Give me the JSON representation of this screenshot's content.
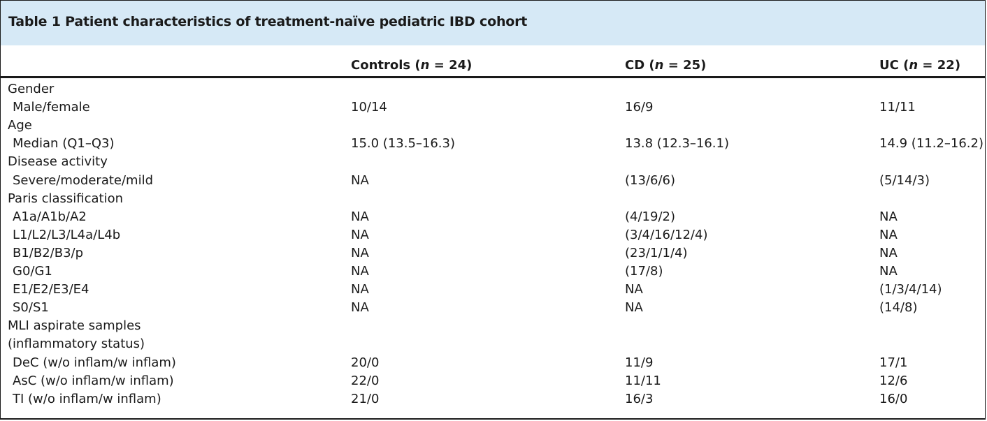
{
  "table": {
    "title": "Table 1 Patient characteristics of treatment-naïve pediatric IBD cohort",
    "columns": [
      {
        "label": "Controls (",
        "n_sym": "n",
        "rest": " = 24)"
      },
      {
        "label": "CD (",
        "n_sym": "n",
        "rest": " = 25)"
      },
      {
        "label": "UC (",
        "n_sym": "n",
        "rest": " = 22)"
      }
    ],
    "rows": [
      {
        "label": "Gender",
        "sub": false,
        "values": [
          "",
          "",
          ""
        ]
      },
      {
        "label": "Male/female",
        "sub": true,
        "values": [
          "10/14",
          "16/9",
          "11/11"
        ]
      },
      {
        "label": "Age",
        "sub": false,
        "values": [
          "",
          "",
          ""
        ]
      },
      {
        "label": "Median (Q1–Q3)",
        "sub": true,
        "values": [
          "15.0 (13.5–16.3)",
          "13.8 (12.3–16.1)",
          "14.9 (11.2–16.2)"
        ]
      },
      {
        "label": "Disease activity",
        "sub": false,
        "values": [
          "",
          "",
          ""
        ]
      },
      {
        "label": "Severe/moderate/mild",
        "sub": true,
        "values": [
          "NA",
          "(13/6/6)",
          "(5/14/3)"
        ]
      },
      {
        "label": "Paris classification",
        "sub": false,
        "values": [
          "",
          "",
          ""
        ]
      },
      {
        "label": "A1a/A1b/A2",
        "sub": true,
        "values": [
          "NA",
          "(4/19/2)",
          "NA"
        ]
      },
      {
        "label": "L1/L2/L3/L4a/L4b",
        "sub": true,
        "values": [
          "NA",
          "(3/4/16/12/4)",
          "NA"
        ]
      },
      {
        "label": "B1/B2/B3/p",
        "sub": true,
        "values": [
          "NA",
          "(23/1/1/4)",
          "NA"
        ]
      },
      {
        "label": "G0/G1",
        "sub": true,
        "values": [
          "NA",
          "(17/8)",
          "NA"
        ]
      },
      {
        "label": "E1/E2/E3/E4",
        "sub": true,
        "values": [
          "NA",
          "NA",
          "(1/3/4/14)"
        ]
      },
      {
        "label": "S0/S1",
        "sub": true,
        "values": [
          "NA",
          "NA",
          "(14/8)"
        ]
      },
      {
        "label": "MLI aspirate samples",
        "sub": false,
        "values": [
          "",
          "",
          ""
        ]
      },
      {
        "label": "(inflammatory status)",
        "sub": false,
        "values": [
          "",
          "",
          ""
        ]
      },
      {
        "label": "DeC (w/o inflam/w inflam)",
        "sub": true,
        "values": [
          "20/0",
          "11/9",
          "17/1"
        ]
      },
      {
        "label": "AsC (w/o inflam/w inflam)",
        "sub": true,
        "values": [
          "22/0",
          "11/11",
          "12/6"
        ]
      },
      {
        "label": "TI (w/o inflam/w inflam)",
        "sub": true,
        "values": [
          "21/0",
          "16/3",
          "16/0"
        ]
      }
    ]
  }
}
